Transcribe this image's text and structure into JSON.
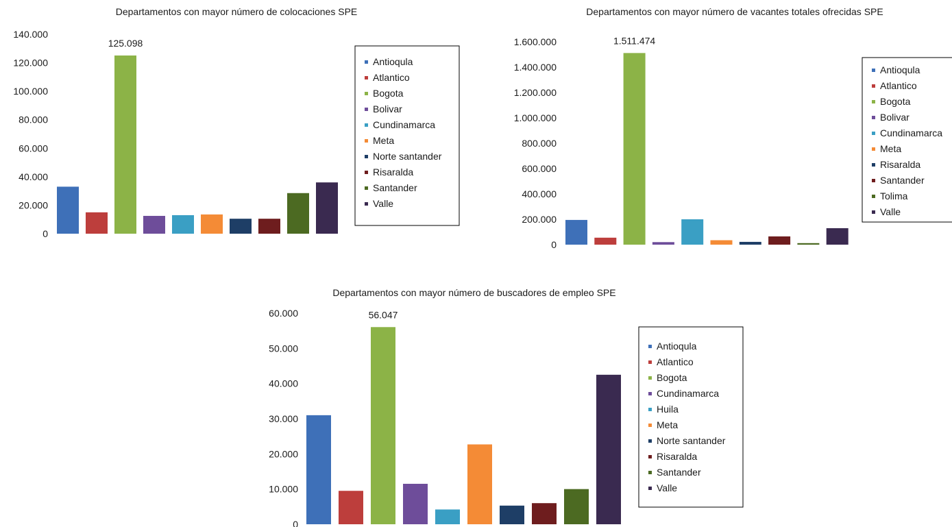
{
  "chart_data": [
    {
      "type": "bar",
      "title": "Departamentos con mayor número de colocaciones SPE",
      "categories": [
        "Antioqula",
        "Atlantico",
        "Bogota",
        "Bolivar",
        "Cundinamarca",
        "Meta",
        "Norte santander",
        "Risaralda",
        "Santander",
        "Valle"
      ],
      "values": [
        33000,
        15000,
        125098,
        12500,
        13000,
        13500,
        10500,
        10500,
        28500,
        36000
      ],
      "colors": [
        "#3e70b8",
        "#bd3e3c",
        "#8cb347",
        "#6e4d9a",
        "#3a9fc4",
        "#f48b36",
        "#1e3e66",
        "#6e1d1e",
        "#4c6a22",
        "#3a2a50"
      ],
      "yticks": [
        "0",
        "20.000",
        "40.000",
        "60.000",
        "80.000",
        "100.000",
        "120.000",
        "140.000"
      ],
      "ylim": [
        0,
        140000
      ],
      "data_labels": [
        {
          "index": 2,
          "text": "125.098"
        }
      ],
      "legend": [
        "Antioqula",
        "Atlantico",
        "Bogota",
        "Bolivar",
        "Cundinamarca",
        "Meta",
        "Norte santander",
        "Risaralda",
        "Santander",
        "Valle"
      ],
      "legend_position": "right",
      "grid": false
    },
    {
      "type": "bar",
      "title": "Departamentos con mayor número de vacantes totales ofrecidas SPE",
      "categories": [
        "Antioqula",
        "Atlantico",
        "Bogota",
        "Bolivar",
        "Cundinamarca",
        "Meta",
        "Risaralda",
        "Santander",
        "Tolima",
        "Valle"
      ],
      "values": [
        195000,
        55000,
        1511474,
        20000,
        200000,
        35000,
        22000,
        65000,
        12000,
        130000
      ],
      "colors": [
        "#3e70b8",
        "#bd3e3c",
        "#8cb347",
        "#6e4d9a",
        "#3a9fc4",
        "#f48b36",
        "#1e3e66",
        "#6e1d1e",
        "#4c6a22",
        "#3a2a50"
      ],
      "yticks": [
        "0",
        "200.000",
        "400.000",
        "600.000",
        "800.000",
        "1.000.000",
        "1.200.000",
        "1.400.000",
        "1.600.000"
      ],
      "ylim": [
        0,
        1600000
      ],
      "data_labels": [
        {
          "index": 2,
          "text": "1.511.474"
        }
      ],
      "legend": [
        "Antioqula",
        "Atlantico",
        "Bogota",
        "Bolivar",
        "Cundinamarca",
        "Meta",
        "Risaralda",
        "Santander",
        "Tolima",
        "Valle"
      ],
      "legend_position": "right",
      "grid": false
    },
    {
      "type": "bar",
      "title": "Departamentos con mayor número de buscadores de empleo SPE",
      "categories": [
        "Antioqula",
        "Atlantico",
        "Bogota",
        "Cundinamarca",
        "Huila",
        "Meta",
        "Norte santander",
        "Risaralda",
        "Santander",
        "Valle"
      ],
      "values": [
        31000,
        9500,
        56047,
        11500,
        4200,
        22700,
        5300,
        6000,
        10000,
        42500
      ],
      "colors": [
        "#3e70b8",
        "#bd3e3c",
        "#8cb347",
        "#6e4d9a",
        "#3a9fc4",
        "#f48b36",
        "#1e3e66",
        "#6e1d1e",
        "#4c6a22",
        "#3a2a50"
      ],
      "yticks": [
        "0",
        "10.000",
        "20.000",
        "30.000",
        "40.000",
        "50.000",
        "60.000"
      ],
      "ylim": [
        0,
        60000
      ],
      "data_labels": [
        {
          "index": 2,
          "text": "56.047"
        }
      ],
      "legend": [
        "Antioqula",
        "Atlantico",
        "Bogota",
        "Cundinamarca",
        "Huila",
        "Meta",
        "Norte santander",
        "Risaralda",
        "Santander",
        "Valle"
      ],
      "legend_position": "right",
      "grid": false
    }
  ]
}
